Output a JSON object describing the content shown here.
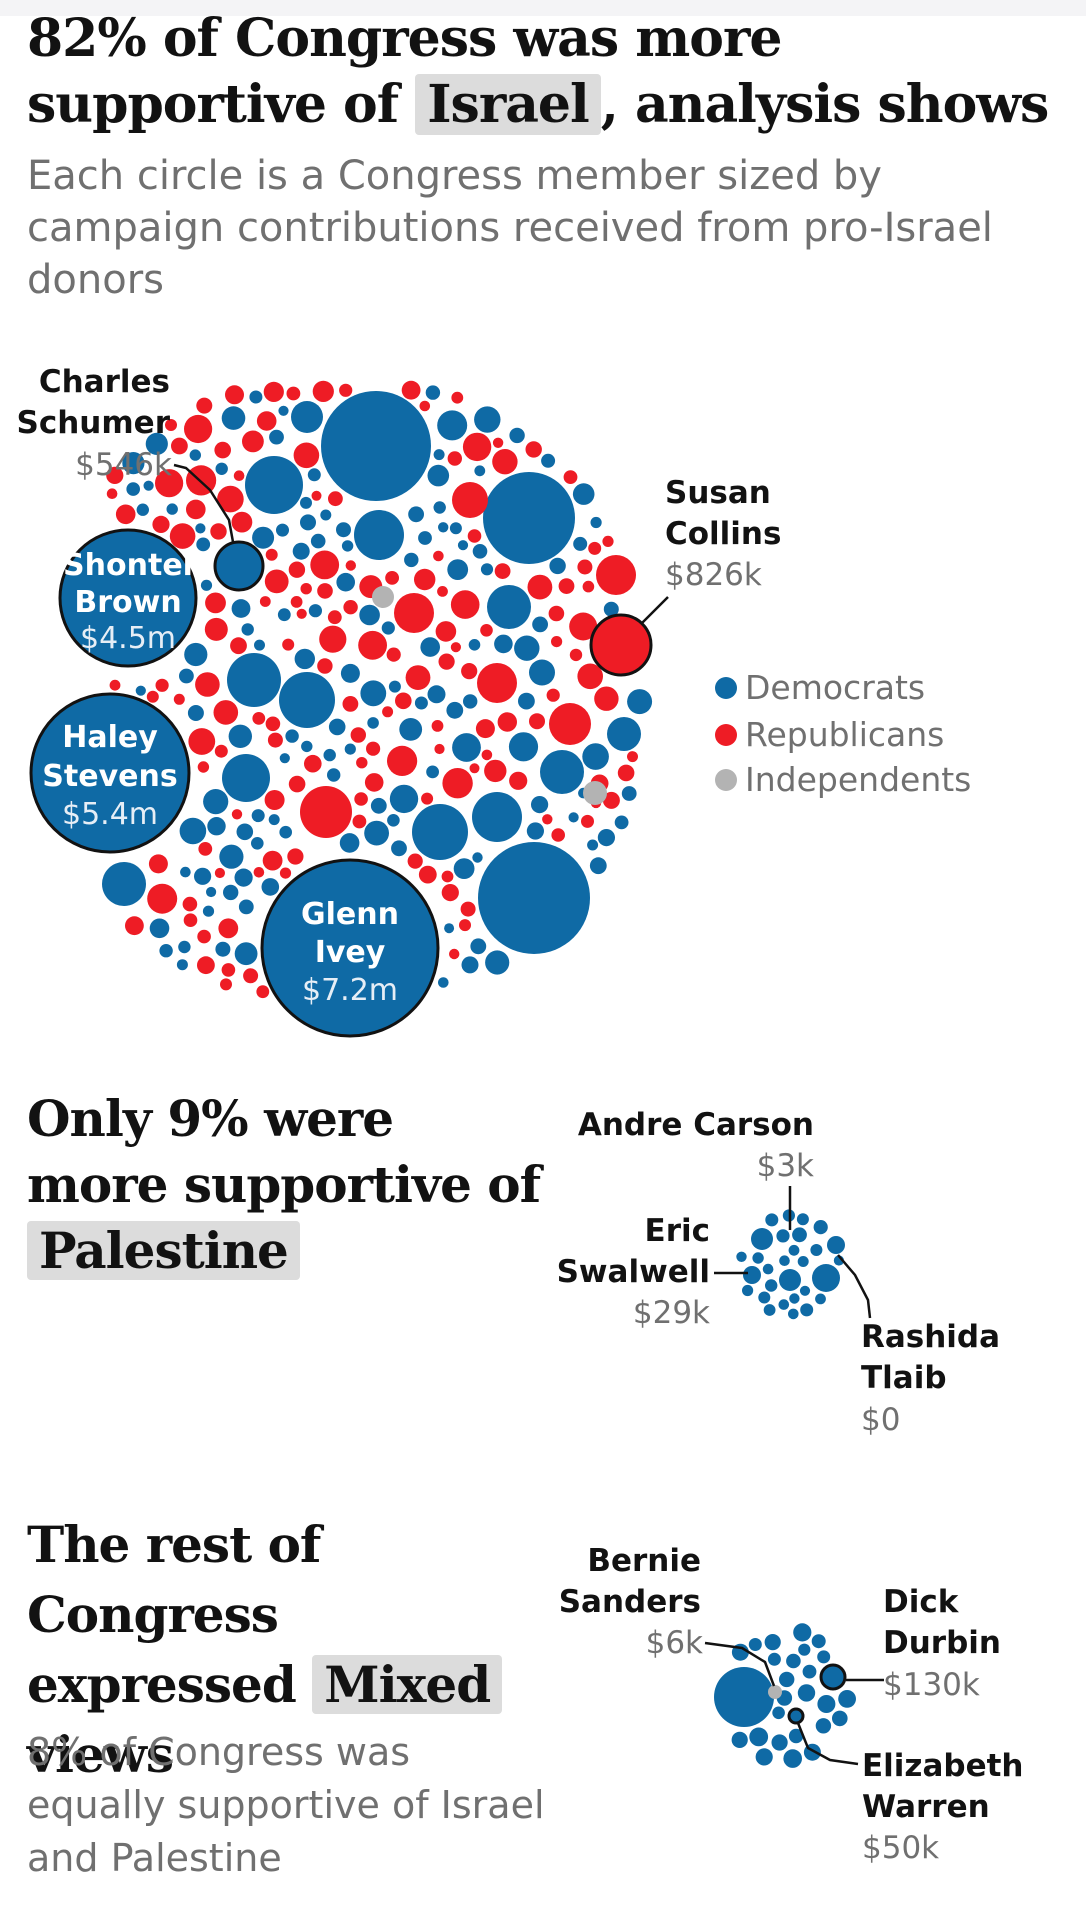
{
  "headline": {
    "part1": "82% of Congress was more supportive of",
    "highlight": "Israel",
    "part2": ", analysis shows"
  },
  "subtitle": "Each circle is a Congress member sized by campaign contributions received from pro-Israel donors",
  "section_palestine": {
    "part1": "Only 9% were more supportive of",
    "highlight": "Palestine"
  },
  "section_mixed": {
    "part1": "The rest of Congress expressed",
    "highlight": "Mixed",
    "part2": "views",
    "note": "8% of Congress was equally supportive of Israel and Palestine"
  },
  "legend": [
    {
      "label": "Democrats",
      "color": "#0f6aa5"
    },
    {
      "label": "Republicans",
      "color": "#ee1c25"
    },
    {
      "label": "Independents",
      "color": "#b3b3b3"
    }
  ],
  "chart_data": [
    {
      "type": "bubble",
      "group": "More supportive of Israel",
      "share": "82%",
      "labeled_members": [
        {
          "name_lines": [
            "Charles",
            "Schumer"
          ],
          "amount": "$546k",
          "party": "Democrats"
        },
        {
          "name_lines": [
            "Susan",
            "Collins"
          ],
          "amount": "$826k",
          "party": "Republicans"
        },
        {
          "name_lines": [
            "Shontel",
            "Brown"
          ],
          "amount": "$4.5m",
          "party": "Democrats"
        },
        {
          "name_lines": [
            "Haley",
            "Stevens"
          ],
          "amount": "$5.4m",
          "party": "Democrats"
        },
        {
          "name_lines": [
            "Glenn",
            "Ivey"
          ],
          "amount": "$7.2m",
          "party": "Democrats"
        }
      ]
    },
    {
      "type": "bubble",
      "group": "More supportive of Palestine",
      "share": "9%",
      "labeled_members": [
        {
          "name_lines": [
            "Andre Carson"
          ],
          "amount": "$3k",
          "party": "Democrats"
        },
        {
          "name_lines": [
            "Eric",
            "Swalwell"
          ],
          "amount": "$29k",
          "party": "Democrats"
        },
        {
          "name_lines": [
            "Rashida",
            "Tlaib"
          ],
          "amount": "$0",
          "party": "Democrats"
        }
      ]
    },
    {
      "type": "bubble",
      "group": "Mixed views",
      "share": "8%",
      "labeled_members": [
        {
          "name_lines": [
            "Bernie",
            "Sanders"
          ],
          "amount": "$6k",
          "party": "Independents"
        },
        {
          "name_lines": [
            "Dick",
            "Durbin"
          ],
          "amount": "$130k",
          "party": "Democrats"
        },
        {
          "name_lines": [
            "Elizabeth",
            "Warren"
          ],
          "amount": "$50k",
          "party": "Democrats"
        }
      ]
    }
  ]
}
